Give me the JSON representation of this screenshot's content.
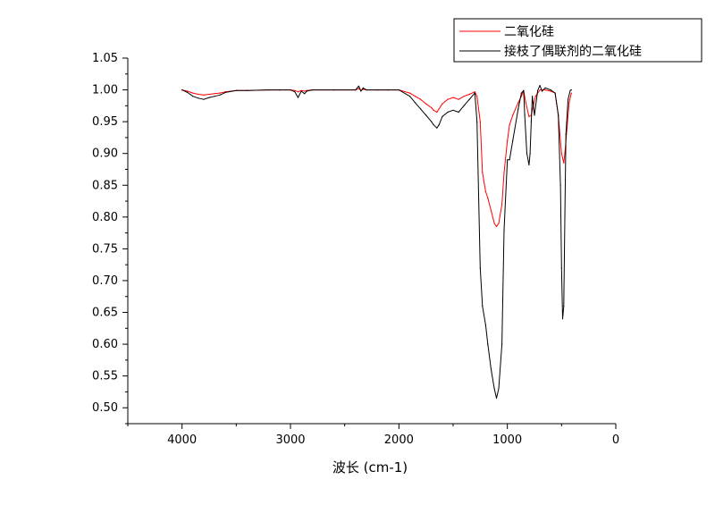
{
  "chart_data": {
    "type": "line",
    "title": "",
    "xlabel": "波长 (cm-1)",
    "ylabel": "",
    "xlim": [
      4500,
      0
    ],
    "ylim": [
      0.475,
      1.05
    ],
    "x_reversed": true,
    "grid": false,
    "legend_placement": "top-right",
    "x_ticks": [
      {
        "value": 4000,
        "label": "4000"
      },
      {
        "value": 3000,
        "label": "3000"
      },
      {
        "value": 2000,
        "label": "2000"
      },
      {
        "value": 1000,
        "label": "1000"
      },
      {
        "value": 0,
        "label": "0"
      }
    ],
    "y_ticks": [
      {
        "value": 1.05,
        "label": "1.05"
      },
      {
        "value": 1.0,
        "label": "1.00"
      },
      {
        "value": 0.95,
        "label": "0.95"
      },
      {
        "value": 0.9,
        "label": "0.90"
      },
      {
        "value": 0.85,
        "label": "0.85"
      },
      {
        "value": 0.8,
        "label": "0.80"
      },
      {
        "value": 0.75,
        "label": "0.75"
      },
      {
        "value": 0.7,
        "label": "0.70"
      },
      {
        "value": 0.65,
        "label": "0.65"
      },
      {
        "value": 0.6,
        "label": "0.60"
      },
      {
        "value": 0.55,
        "label": "0.55"
      },
      {
        "value": 0.5,
        "label": "0.50"
      }
    ],
    "series": [
      {
        "name": "二氧化硅",
        "color": "#ff0000",
        "x": [
          4000,
          3950,
          3900,
          3850,
          3800,
          3750,
          3700,
          3650,
          3600,
          3500,
          3400,
          3200,
          3100,
          3000,
          2960,
          2930,
          2900,
          2870,
          2850,
          2800,
          2600,
          2400,
          2370,
          2350,
          2330,
          2300,
          2200,
          2100,
          2000,
          1900,
          1850,
          1800,
          1750,
          1700,
          1680,
          1650,
          1630,
          1600,
          1550,
          1500,
          1450,
          1400,
          1350,
          1300,
          1280,
          1250,
          1230,
          1200,
          1180,
          1150,
          1120,
          1100,
          1080,
          1050,
          1030,
          1000,
          980,
          950,
          900,
          870,
          850,
          830,
          800,
          780,
          760,
          740,
          700,
          650,
          600,
          560,
          530,
          500,
          480,
          470,
          450,
          430,
          410
        ],
        "y": [
          1.0,
          0.998,
          0.995,
          0.993,
          0.992,
          0.993,
          0.994,
          0.995,
          0.997,
          0.999,
          0.999,
          1.0,
          1.0,
          1.0,
          0.999,
          0.997,
          0.999,
          0.998,
          0.999,
          1.0,
          1.0,
          1.0,
          1.002,
          0.999,
          1.001,
          1.0,
          1.0,
          1.0,
          1.0,
          0.995,
          0.99,
          0.985,
          0.978,
          0.972,
          0.968,
          0.965,
          0.97,
          0.978,
          0.985,
          0.988,
          0.985,
          0.99,
          0.993,
          0.997,
          0.99,
          0.95,
          0.87,
          0.84,
          0.83,
          0.81,
          0.79,
          0.785,
          0.79,
          0.82,
          0.87,
          0.92,
          0.945,
          0.96,
          0.98,
          0.99,
          0.999,
          0.98,
          0.958,
          0.96,
          0.975,
          0.99,
          1.0,
          1.0,
          0.998,
          0.995,
          0.96,
          0.9,
          0.885,
          0.9,
          0.94,
          0.98,
          0.995
        ]
      },
      {
        "name": "接枝了偶联剂的二氧化硅",
        "color": "#000000",
        "x": [
          4000,
          3950,
          3900,
          3850,
          3800,
          3750,
          3700,
          3650,
          3600,
          3500,
          3400,
          3200,
          3100,
          3000,
          2960,
          2930,
          2900,
          2870,
          2850,
          2800,
          2600,
          2400,
          2370,
          2350,
          2330,
          2300,
          2200,
          2100,
          2000,
          1900,
          1850,
          1800,
          1750,
          1700,
          1680,
          1650,
          1630,
          1600,
          1550,
          1500,
          1450,
          1400,
          1350,
          1300,
          1280,
          1250,
          1230,
          1200,
          1180,
          1150,
          1120,
          1100,
          1080,
          1050,
          1030,
          1000,
          980,
          950,
          900,
          870,
          850,
          840,
          820,
          800,
          790,
          780,
          770,
          760,
          750,
          720,
          700,
          680,
          650,
          600,
          560,
          530,
          510,
          500,
          490,
          480,
          470,
          460,
          440,
          420,
          410
        ],
        "y": [
          1.0,
          0.996,
          0.99,
          0.987,
          0.985,
          0.988,
          0.99,
          0.992,
          0.996,
          0.999,
          0.999,
          1.0,
          1.0,
          1.0,
          0.997,
          0.988,
          0.998,
          0.994,
          0.998,
          1.0,
          1.0,
          1.0,
          1.006,
          0.998,
          1.003,
          1.0,
          1.0,
          1.0,
          1.0,
          0.99,
          0.98,
          0.97,
          0.96,
          0.95,
          0.945,
          0.94,
          0.945,
          0.958,
          0.965,
          0.968,
          0.965,
          0.975,
          0.985,
          0.995,
          0.95,
          0.72,
          0.66,
          0.63,
          0.6,
          0.56,
          0.53,
          0.515,
          0.53,
          0.6,
          0.78,
          0.89,
          0.89,
          0.92,
          0.97,
          0.995,
          0.999,
          0.96,
          0.9,
          0.882,
          0.9,
          0.95,
          0.99,
          0.975,
          0.96,
          0.999,
          1.007,
          0.998,
          1.003,
          1.0,
          0.995,
          0.96,
          0.85,
          0.72,
          0.64,
          0.66,
          0.8,
          0.93,
          0.985,
          0.999,
          1.0
        ]
      }
    ]
  }
}
